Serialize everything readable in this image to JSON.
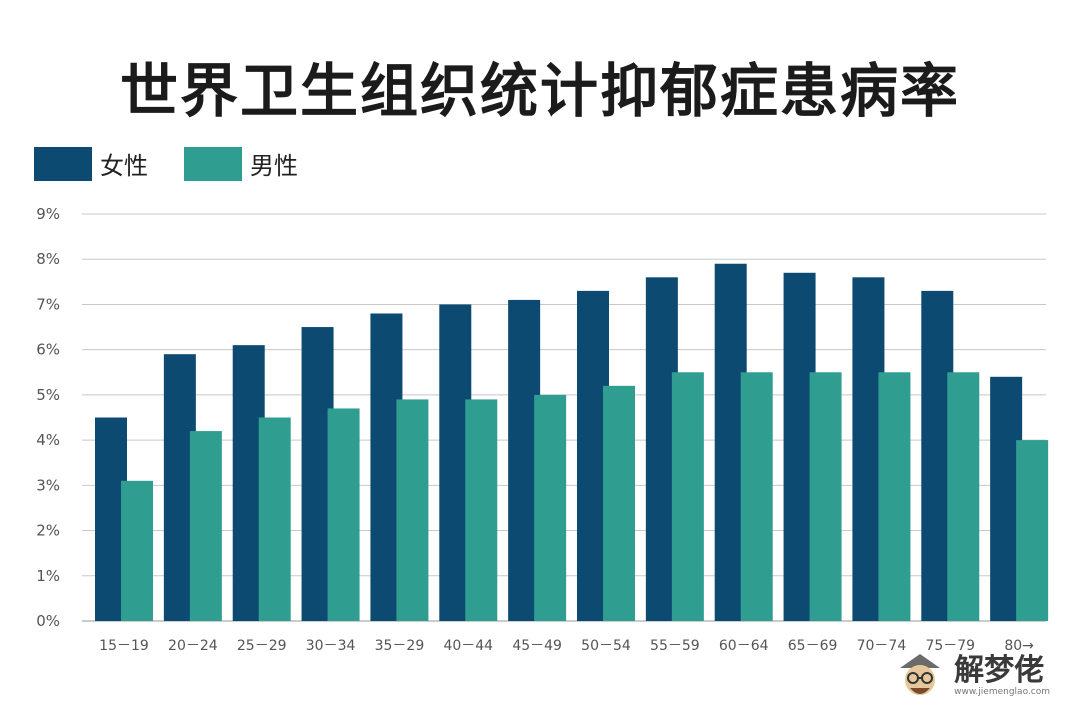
{
  "title": "世界卫生组织统计抑郁症患病率",
  "watermark": {
    "name": "解梦佬",
    "url": "www.jiemenglao.com"
  },
  "chart_data": {
    "type": "bar",
    "title": "世界卫生组织统计抑郁症患病率",
    "xlabel": "",
    "ylabel": "",
    "ylim": [
      0,
      9
    ],
    "yticks": [
      "0%",
      "1%",
      "2%",
      "3%",
      "4%",
      "5%",
      "6%",
      "7%",
      "8%",
      "9%"
    ],
    "grid": true,
    "legend_position": "top-left",
    "categories": [
      "15－19",
      "20－24",
      "25－29",
      "30－34",
      "35－29",
      "40－44",
      "45－49",
      "50－54",
      "55－59",
      "60－64",
      "65－69",
      "70－74",
      "75－79",
      "80→"
    ],
    "series": [
      {
        "name": "女性",
        "color": "#0d4a72",
        "values": [
          4.5,
          5.9,
          6.1,
          6.5,
          6.8,
          7.0,
          7.1,
          7.3,
          7.6,
          7.9,
          7.7,
          7.6,
          7.3,
          5.4
        ]
      },
      {
        "name": "男性",
        "color": "#2f9e91",
        "values": [
          3.1,
          4.2,
          4.5,
          4.7,
          4.9,
          4.9,
          5.0,
          5.2,
          5.5,
          5.5,
          5.5,
          5.5,
          5.5,
          4.0
        ]
      }
    ]
  }
}
